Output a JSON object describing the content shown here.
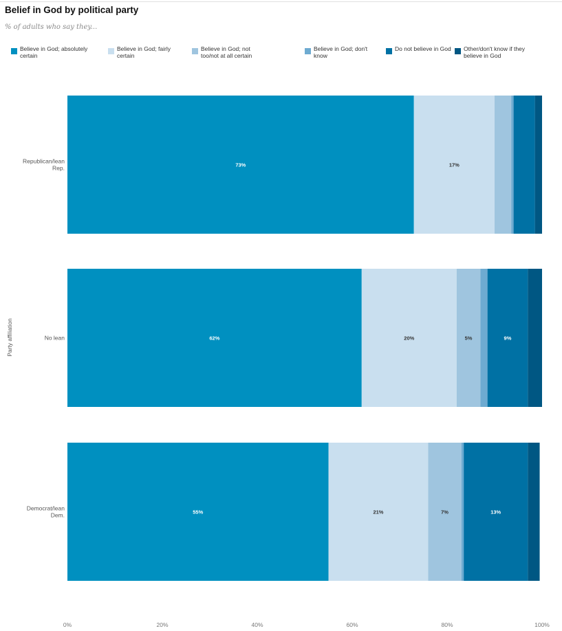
{
  "title": "Belief in God by political party",
  "subtitle": "% of adults who say they...",
  "chart_data": {
    "type": "bar",
    "orientation": "horizontal",
    "stacked": true,
    "title": "Belief in God by political party",
    "subtitle": "% of adults who say they...",
    "ylabel": "Party affiliation",
    "xlim": [
      0,
      100
    ],
    "x_ticks": [
      "0%",
      "20%",
      "40%",
      "60%",
      "80%",
      "100%"
    ],
    "categories": [
      {
        "label_lines": [
          "Republican/lean",
          "Rep."
        ]
      },
      {
        "label_lines": [
          "No lean"
        ]
      },
      {
        "label_lines": [
          "Democrat/lean",
          "Dem."
        ]
      }
    ],
    "series": [
      {
        "name": "Believe in God; absolutely certain",
        "color": "#0090c0",
        "label_color": "#ffffff",
        "values": [
          73,
          62,
          55
        ],
        "labels": [
          "73%",
          "62%",
          "55%"
        ]
      },
      {
        "name": "Believe in God; fairly certain",
        "color": "#c9dfef",
        "label_color": "#333333",
        "values": [
          17,
          20,
          21
        ],
        "labels": [
          "17%",
          "20%",
          "21%"
        ]
      },
      {
        "name": "Believe in God; not too/not at all certain",
        "color": "#9fc5df",
        "label_color": "#333333",
        "values": [
          3.5,
          5,
          7
        ],
        "labels": [
          "",
          "5%",
          "7%"
        ]
      },
      {
        "name": "Believe in God; don't know",
        "color": "#6eabd1",
        "label_color": "#333333",
        "values": [
          0.5,
          1.5,
          0.5
        ],
        "labels": [
          "",
          "",
          ""
        ]
      },
      {
        "name": "Do not believe in God",
        "color": "#0071a4",
        "label_color": "#ffffff",
        "values": [
          4.5,
          8.5,
          13.5
        ],
        "labels": [
          "",
          "9%",
          "13%"
        ]
      },
      {
        "name": "Other/don't know if they believe in God",
        "color": "#005783",
        "label_color": "#ffffff",
        "values": [
          1.5,
          3,
          2.5
        ],
        "labels": [
          "",
          "",
          ""
        ]
      }
    ],
    "legend_position": "top",
    "grid": false
  }
}
